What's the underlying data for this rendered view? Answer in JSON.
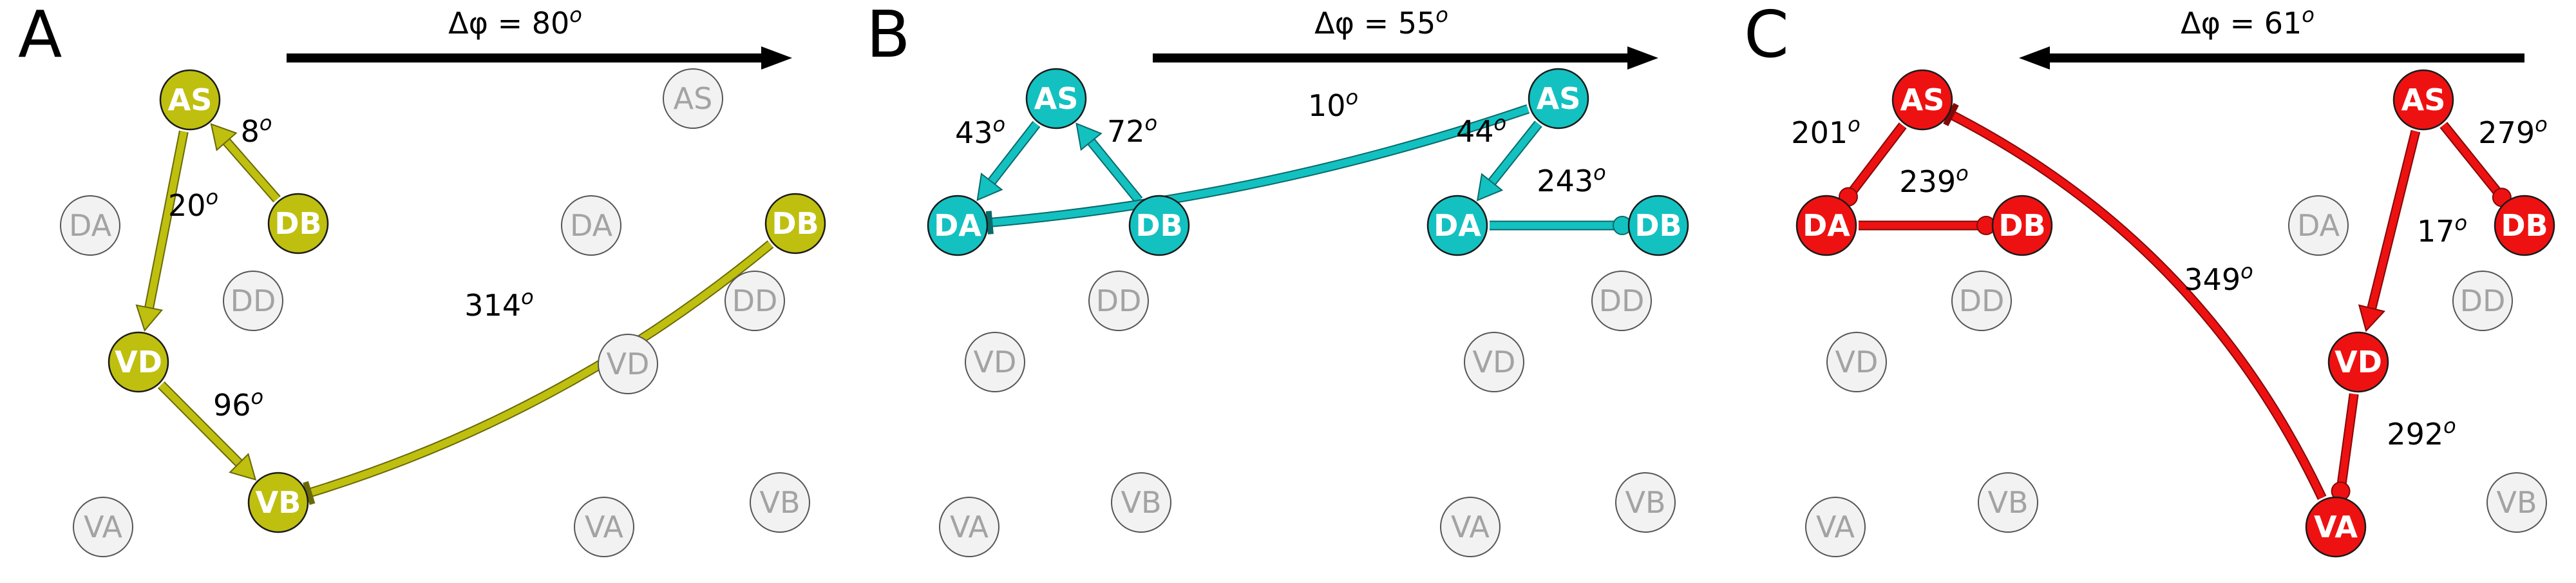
{
  "panels": [
    {
      "label": "A",
      "phase_text": "Δφ = 80",
      "phase_sup": "o",
      "arrow_direction": "right",
      "color": "#bfbf0f",
      "nodes": [
        {
          "id": "AS",
          "label": "AS",
          "active": true
        },
        {
          "id": "DB",
          "label": "DB",
          "active": true
        },
        {
          "id": "VD",
          "label": "VD",
          "active": true
        },
        {
          "id": "VB",
          "label": "VB",
          "active": true
        },
        {
          "id": "DB2",
          "label": "DB",
          "active": true
        },
        {
          "id": "DA",
          "label": "DA",
          "active": false
        },
        {
          "id": "DD",
          "label": "DD",
          "active": false
        },
        {
          "id": "VA",
          "label": "VA",
          "active": false
        },
        {
          "id": "AS2",
          "label": "AS",
          "active": false
        },
        {
          "id": "DA2",
          "label": "DA",
          "active": false
        },
        {
          "id": "DD2",
          "label": "DD",
          "active": false
        },
        {
          "id": "VD2",
          "label": "VD",
          "active": false
        },
        {
          "id": "VA2",
          "label": "VA",
          "active": false
        },
        {
          "id": "VB2",
          "label": "VB",
          "active": false
        }
      ],
      "edges": [
        {
          "from": "DB",
          "to": "AS",
          "label": "8",
          "sup": "o",
          "type": "excitatory"
        },
        {
          "from": "AS",
          "to": "VD",
          "label": "20",
          "sup": "o",
          "type": "excitatory"
        },
        {
          "from": "VD",
          "to": "VB",
          "label": "96",
          "sup": "o",
          "type": "excitatory"
        },
        {
          "from": "DB2",
          "to": "VB",
          "label": "314",
          "sup": "o",
          "type": "inhibitory"
        }
      ]
    },
    {
      "label": "B",
      "phase_text": "Δφ = 55",
      "phase_sup": "o",
      "arrow_direction": "right",
      "color": "#13c1c1",
      "nodes": [
        {
          "id": "AS",
          "label": "AS",
          "active": true
        },
        {
          "id": "DA",
          "label": "DA",
          "active": true
        },
        {
          "id": "DB",
          "label": "DB",
          "active": true
        },
        {
          "id": "AS2",
          "label": "AS",
          "active": true
        },
        {
          "id": "DA2",
          "label": "DA",
          "active": true
        },
        {
          "id": "DB2",
          "label": "DB",
          "active": true
        },
        {
          "id": "DD",
          "label": "DD",
          "active": false
        },
        {
          "id": "VD",
          "label": "VD",
          "active": false
        },
        {
          "id": "VB",
          "label": "VB",
          "active": false
        },
        {
          "id": "VA",
          "label": "VA",
          "active": false
        },
        {
          "id": "DD2",
          "label": "DD",
          "active": false
        },
        {
          "id": "VD2",
          "label": "VD",
          "active": false
        },
        {
          "id": "VA2",
          "label": "VA",
          "active": false
        },
        {
          "id": "VB2",
          "label": "VB",
          "active": false
        }
      ],
      "edges": [
        {
          "from": "AS",
          "to": "DA",
          "label": "43",
          "sup": "o",
          "type": "excitatory"
        },
        {
          "from": "DB",
          "to": "AS",
          "label": "72",
          "sup": "o",
          "type": "excitatory"
        },
        {
          "from": "AS2",
          "to": "DA",
          "label": "10",
          "sup": "o",
          "type": "inhibitory"
        },
        {
          "from": "AS2",
          "to": "DA2",
          "label": "44",
          "sup": "o",
          "type": "excitatory"
        },
        {
          "from": "DA2",
          "to": "DB2",
          "label": "243",
          "sup": "o",
          "type": "gap"
        }
      ]
    },
    {
      "label": "C",
      "phase_text": "Δφ = 61",
      "phase_sup": "o",
      "arrow_direction": "left",
      "color": "#ee1111",
      "nodes": [
        {
          "id": "AS",
          "label": "AS",
          "active": true
        },
        {
          "id": "DA",
          "label": "DA",
          "active": true
        },
        {
          "id": "DB",
          "label": "DB",
          "active": true
        },
        {
          "id": "AS2",
          "label": "AS",
          "active": true
        },
        {
          "id": "DB2",
          "label": "DB",
          "active": true
        },
        {
          "id": "VD",
          "label": "VD",
          "active": true
        },
        {
          "id": "VA",
          "label": "VA",
          "active": true
        },
        {
          "id": "DD",
          "label": "DD",
          "active": false
        },
        {
          "id": "VD0",
          "label": "VD",
          "active": false
        },
        {
          "id": "VB",
          "label": "VB",
          "active": false
        },
        {
          "id": "VA0",
          "label": "VA",
          "active": false
        },
        {
          "id": "DA2",
          "label": "DA",
          "active": false
        },
        {
          "id": "DD2",
          "label": "DD",
          "active": false
        },
        {
          "id": "VB2",
          "label": "VB",
          "active": false
        }
      ],
      "edges": [
        {
          "from": "AS",
          "to": "DA",
          "label": "201",
          "sup": "o",
          "type": "gap"
        },
        {
          "from": "DA",
          "to": "DB",
          "label": "239",
          "sup": "o",
          "type": "gap"
        },
        {
          "from": "VA",
          "to": "AS",
          "label": "349",
          "sup": "o",
          "type": "inhibitory"
        },
        {
          "from": "AS2",
          "to": "VD",
          "label": "17",
          "sup": "o",
          "type": "excitatory"
        },
        {
          "from": "AS2",
          "to": "DB2",
          "label": "279",
          "sup": "o",
          "type": "gap"
        },
        {
          "from": "VD",
          "to": "VA",
          "label": "292",
          "sup": "o",
          "type": "gap"
        }
      ]
    }
  ]
}
